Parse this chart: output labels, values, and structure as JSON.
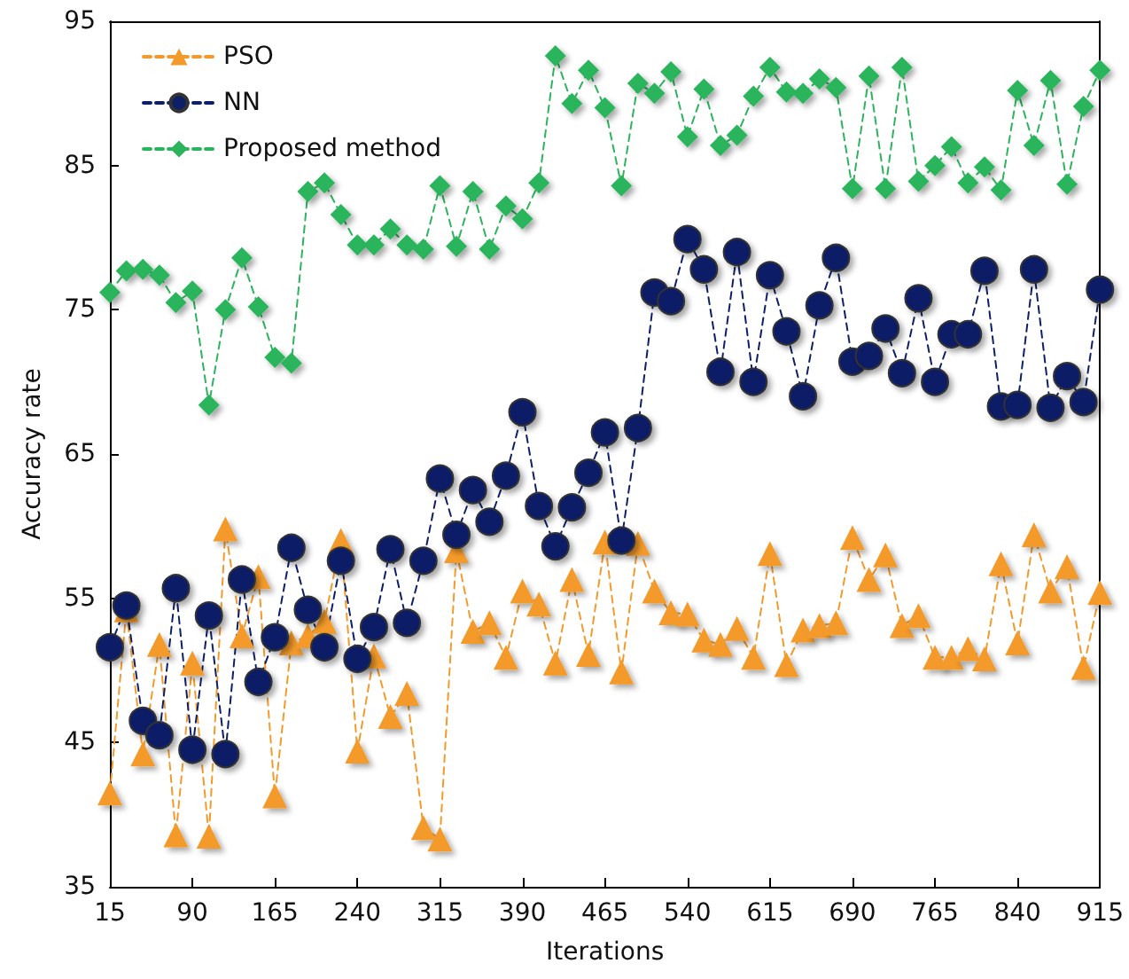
{
  "chart_data": {
    "type": "line",
    "xlabel": "Iterations",
    "ylabel": "Accuracy rate",
    "x": [
      15,
      30,
      45,
      60,
      75,
      90,
      105,
      120,
      135,
      150,
      165,
      180,
      195,
      210,
      225,
      240,
      255,
      270,
      285,
      300,
      315,
      330,
      345,
      360,
      375,
      390,
      405,
      420,
      435,
      450,
      465,
      480,
      495,
      510,
      525,
      540,
      555,
      570,
      585,
      600,
      615,
      630,
      645,
      660,
      675,
      690,
      705,
      720,
      735,
      750,
      765,
      780,
      795,
      810,
      825,
      840,
      855,
      870,
      885,
      900,
      915
    ],
    "series": [
      {
        "name": "PSO",
        "color": "#f39a2b",
        "marker": "triangle",
        "line_style": "dashed",
        "values": [
          41.5,
          54.2,
          44.2,
          51.8,
          38.6,
          50.5,
          38.5,
          59.8,
          52.4,
          56.5,
          41.3,
          51.9,
          52.4,
          53.4,
          59.0,
          44.4,
          51.0,
          46.8,
          48.4,
          39.1,
          38.3,
          58.3,
          52.7,
          53.3,
          50.9,
          55.5,
          54.6,
          50.5,
          56.3,
          51.1,
          58.9,
          49.9,
          58.8,
          55.5,
          54.0,
          53.9,
          52.1,
          51.8,
          52.9,
          50.9,
          58.1,
          50.4,
          52.8,
          53.1,
          53.3,
          59.2,
          56.3,
          58.0,
          53.1,
          53.8,
          50.9,
          50.9,
          51.5,
          50.8,
          57.4,
          51.9,
          59.4,
          55.5,
          57.2,
          50.2,
          55.4
        ]
      },
      {
        "name": "NN",
        "color": "#0d1f66",
        "marker": "circle",
        "line_style": "dashed",
        "values": [
          51.6,
          54.5,
          46.5,
          45.5,
          55.7,
          44.5,
          53.8,
          44.2,
          56.3,
          49.2,
          52.3,
          58.5,
          54.2,
          51.6,
          57.6,
          50.8,
          53.0,
          58.4,
          53.3,
          57.6,
          63.3,
          59.4,
          62.5,
          60.3,
          63.5,
          67.9,
          61.4,
          58.6,
          61.3,
          63.7,
          66.5,
          59.0,
          66.8,
          76.2,
          75.6,
          79.9,
          77.8,
          70.7,
          79.0,
          70.0,
          77.4,
          73.5,
          69.0,
          75.3,
          78.6,
          71.4,
          71.8,
          73.7,
          70.6,
          75.8,
          70.0,
          73.3,
          73.3,
          77.7,
          68.3,
          68.4,
          77.8,
          68.2,
          70.4,
          68.6,
          76.4
        ]
      },
      {
        "name": "Proposed method",
        "color": "#2bb45c",
        "marker": "diamond",
        "line_style": "dashed",
        "values": [
          76.2,
          77.7,
          77.8,
          77.4,
          75.5,
          76.3,
          68.4,
          75.0,
          78.6,
          75.2,
          71.7,
          71.3,
          83.2,
          83.8,
          81.6,
          79.5,
          79.5,
          80.6,
          79.5,
          79.2,
          83.6,
          79.4,
          83.2,
          79.2,
          82.2,
          81.3,
          83.8,
          92.6,
          89.3,
          91.6,
          89.0,
          83.6,
          90.7,
          90.0,
          91.5,
          87.0,
          90.3,
          86.4,
          87.1,
          89.8,
          91.8,
          90.1,
          90.0,
          91.0,
          90.4,
          83.4,
          91.2,
          83.4,
          91.8,
          83.9,
          85.0,
          86.3,
          83.8,
          84.9,
          83.3,
          90.2,
          86.4,
          90.9,
          83.7,
          89.1,
          91.6
        ]
      }
    ],
    "xlim": [
      15,
      915
    ],
    "xticks": [
      15,
      90,
      165,
      240,
      315,
      390,
      465,
      540,
      615,
      690,
      765,
      840,
      915
    ],
    "ylim": [
      35,
      95
    ],
    "yticks": [
      35,
      45,
      55,
      65,
      75,
      85,
      95
    ],
    "grid": false,
    "legend": "top left"
  }
}
